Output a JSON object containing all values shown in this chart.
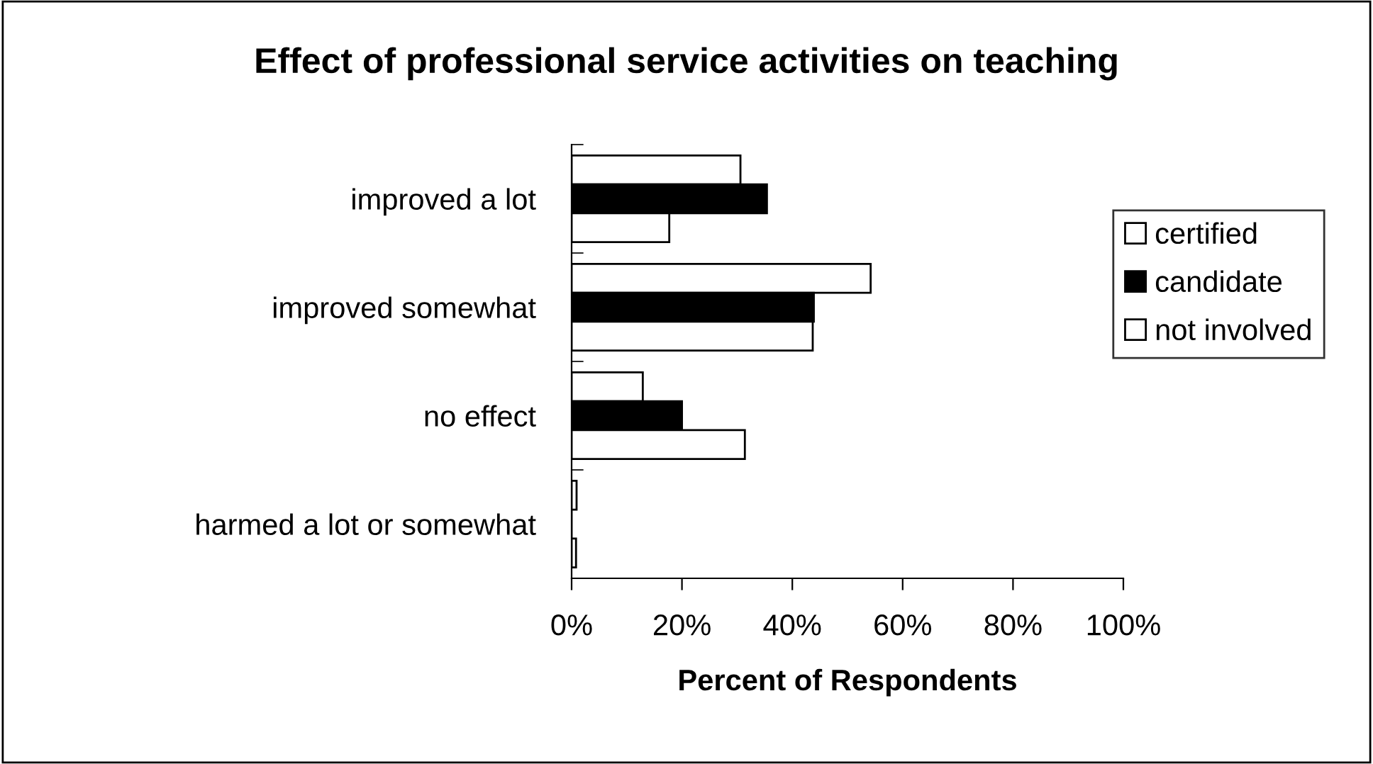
{
  "chart_data": {
    "type": "bar",
    "orientation": "horizontal",
    "title": "Effect of professional service activities on teaching",
    "xlabel": "Percent of Respondents",
    "categories": [
      "improved a lot",
      "improved somewhat",
      "no effect",
      "harmed a lot or somewhat"
    ],
    "series": [
      {
        "name": "certified",
        "color": "#ffffff",
        "values": [
          30.6,
          54.2,
          12.9,
          0.9
        ]
      },
      {
        "name": "candidate",
        "color": "#000000",
        "values": [
          35.4,
          43.9,
          20,
          0
        ]
      },
      {
        "name": "not involved",
        "color": "#ffffff",
        "values": [
          17.7,
          43.7,
          31.4,
          0.8
        ]
      }
    ],
    "xlim": [
      0,
      100
    ],
    "xticks": [
      {
        "value": 0,
        "label": "0%"
      },
      {
        "value": 20,
        "label": "20%"
      },
      {
        "value": 40,
        "label": "40%"
      },
      {
        "value": 60,
        "label": "60%"
      },
      {
        "value": 80,
        "label": "80%"
      },
      {
        "value": 100,
        "label": "100%"
      }
    ],
    "grid": false,
    "legend": "right"
  }
}
